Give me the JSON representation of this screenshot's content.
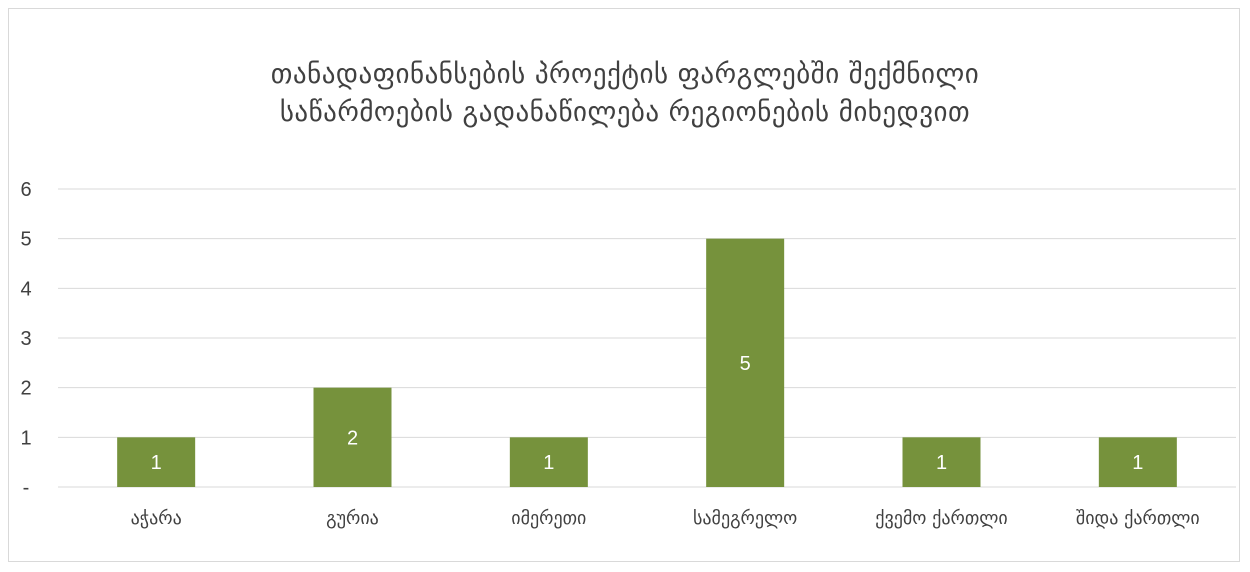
{
  "chart_data": {
    "type": "bar",
    "title_lines": [
      "თანადაფინანსების პროექტის ფარგლებში შექმნილი",
      "საწარმოების გადანაწილება რეგიონების მიხედვით"
    ],
    "categories": [
      "აჭარა",
      "გურია",
      "იმერეთი",
      "სამეგრელო",
      "ქვემო ქართლი",
      "შიდა ქართლი"
    ],
    "values": [
      1,
      2,
      1,
      5,
      1,
      1
    ],
    "data_labels": [
      "1",
      "2",
      "1",
      "5",
      "1",
      "1"
    ],
    "y_tick_labels": [
      "-",
      "1",
      "2",
      "3",
      "4",
      "5",
      "6"
    ],
    "ylim": [
      0,
      6
    ],
    "grid": true,
    "legend": "none",
    "bar_color": "#76923c",
    "gridline_color": "#d9d9d9"
  }
}
